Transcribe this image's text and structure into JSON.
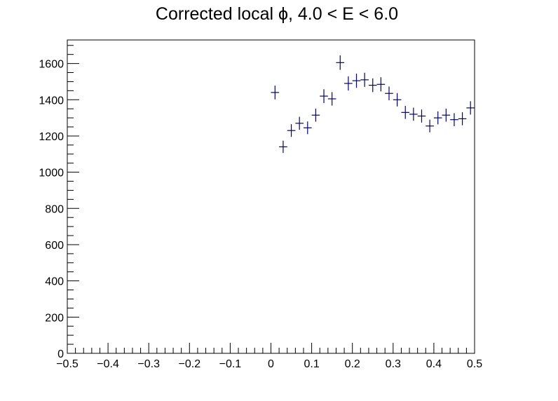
{
  "chart_data": {
    "type": "scatter",
    "title": "Corrected local ϕ, 4.0 < E < 6.0",
    "xlabel": "",
    "ylabel": "",
    "xlim": [
      -0.5,
      0.5
    ],
    "ylim": [
      0,
      1730
    ],
    "x_ticks": [
      -0.5,
      -0.4,
      -0.3,
      -0.2,
      -0.1,
      0,
      0.1,
      0.2,
      0.3,
      0.4,
      0.5
    ],
    "x_tick_labels": [
      "−0.5",
      "−0.4",
      "−0.3",
      "−0.2",
      "−0.1",
      "0",
      "0.1",
      "0.2",
      "0.3",
      "0.4",
      "0.5"
    ],
    "y_ticks": [
      0,
      200,
      400,
      600,
      800,
      1000,
      1200,
      1400,
      1600
    ],
    "y_tick_labels": [
      "0",
      "200",
      "400",
      "600",
      "800",
      "1000",
      "1200",
      "1400",
      "1600"
    ],
    "bin_width": 0.02,
    "marker_color": "#000080",
    "grid": false,
    "series": [
      {
        "x": [
          0.01,
          0.03,
          0.05,
          0.07,
          0.09,
          0.11,
          0.13,
          0.15,
          0.17,
          0.19,
          0.21,
          0.23,
          0.25,
          0.27,
          0.29,
          0.31,
          0.33,
          0.35,
          0.37,
          0.39,
          0.41,
          0.43,
          0.45,
          0.47,
          0.49
        ],
        "y": [
          1440,
          1140,
          1230,
          1270,
          1245,
          1315,
          1420,
          1405,
          1605,
          1490,
          1505,
          1510,
          1480,
          1485,
          1435,
          1400,
          1330,
          1320,
          1310,
          1255,
          1300,
          1315,
          1290,
          1295,
          1355
        ],
        "yerr": [
          38,
          34,
          35,
          36,
          35,
          36,
          38,
          37,
          40,
          39,
          39,
          39,
          38,
          39,
          38,
          37,
          36,
          36,
          36,
          35,
          36,
          36,
          36,
          36,
          37
        ]
      }
    ]
  }
}
